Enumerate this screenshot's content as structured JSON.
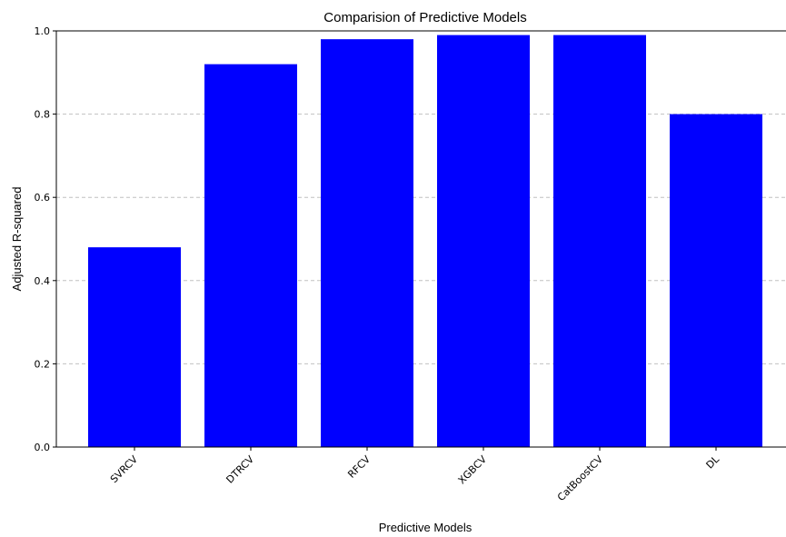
{
  "chart_data": {
    "type": "bar",
    "title": "Comparision of Predictive Models",
    "xlabel": "Predictive Models",
    "ylabel": "Adjusted R-squared",
    "categories": [
      "SVRCV",
      "DTRCV",
      "RFCV",
      "XGBCV",
      "CatBoostCV",
      "DL"
    ],
    "values": [
      0.48,
      0.92,
      0.98,
      0.99,
      0.99,
      0.8
    ],
    "ylim": [
      0,
      1.0
    ],
    "yticks": [
      "0.0",
      "0.2",
      "0.4",
      "0.6",
      "0.8",
      "1.0"
    ],
    "grid": "y-dashed",
    "bar_color": "#0000ff",
    "grid_color": "#c0c0c0"
  }
}
